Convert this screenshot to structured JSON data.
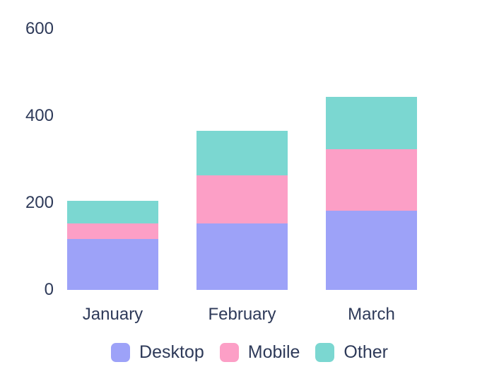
{
  "chart_data": {
    "type": "bar",
    "stacked": true,
    "categories": [
      "January",
      "February",
      "March"
    ],
    "series": [
      {
        "name": "Desktop",
        "color": "#9DA2F8",
        "values": [
          116,
          152,
          182
        ]
      },
      {
        "name": "Mobile",
        "color": "#FC9FC6",
        "values": [
          37,
          111,
          142
        ]
      },
      {
        "name": "Other",
        "color": "#7BD7D1",
        "values": [
          52,
          102,
          120
        ]
      }
    ],
    "ylim": [
      0,
      600
    ],
    "yticks": [
      0,
      200,
      400,
      600
    ],
    "grid": false,
    "axis_lines": false,
    "legend_position": "bottom",
    "text_color": "#2E3A59",
    "background": "#FFFFFF"
  }
}
